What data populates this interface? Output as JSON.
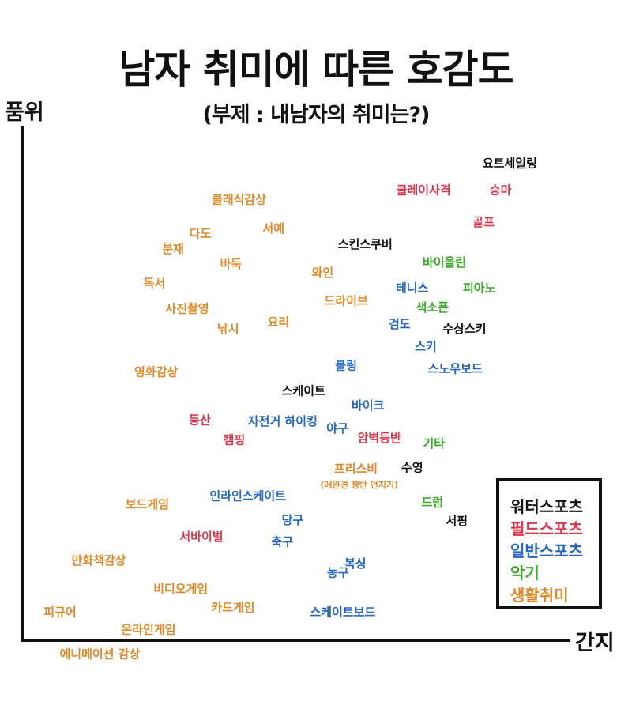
{
  "chart_data": {
    "type": "scatter",
    "title": "남자 취미에 따른 호감도",
    "subtitle": "(부제 : 내남자의 취미는?)",
    "xlabel": "간지",
    "ylabel": "품위",
    "xlim": [
      0,
      100
    ],
    "ylim": [
      0,
      100
    ],
    "grid": false,
    "legend_position": "bottom-right",
    "categories": [
      {
        "name": "워터스포츠",
        "color": "#111111"
      },
      {
        "name": "필드스포츠",
        "color": "#d9384a"
      },
      {
        "name": "일반스포츠",
        "color": "#2567c2"
      },
      {
        "name": "악기",
        "color": "#3aa82a"
      },
      {
        "name": "생활취미",
        "color": "#e0892a"
      }
    ],
    "points": [
      {
        "label": "요트세일링",
        "category": "워터스포츠",
        "x": 89.2,
        "y": 94.2
      },
      {
        "label": "클레이사격",
        "category": "필드스포츠",
        "x": 73.4,
        "y": 88.9
      },
      {
        "label": "승마",
        "category": "필드스포츠",
        "x": 87.5,
        "y": 88.9
      },
      {
        "label": "골프",
        "category": "필드스포츠",
        "x": 84.4,
        "y": 82.6
      },
      {
        "label": "클래식감상",
        "category": "생활취미",
        "x": 39.6,
        "y": 87.0
      },
      {
        "label": "서예",
        "category": "생활취미",
        "x": 45.9,
        "y": 81.3
      },
      {
        "label": "다도",
        "category": "생활취미",
        "x": 32.5,
        "y": 80.3
      },
      {
        "label": "스킨스쿠버",
        "category": "워터스포츠",
        "x": 62.7,
        "y": 78.2
      },
      {
        "label": "분재",
        "category": "생활취미",
        "x": 27.5,
        "y": 77.3
      },
      {
        "label": "바이올린",
        "category": "악기",
        "x": 77.2,
        "y": 74.6
      },
      {
        "label": "바둑",
        "category": "생활취미",
        "x": 38.1,
        "y": 74.3
      },
      {
        "label": "와인",
        "category": "생활취미",
        "x": 54.9,
        "y": 72.6
      },
      {
        "label": "독서",
        "category": "생활취미",
        "x": 24.1,
        "y": 70.5
      },
      {
        "label": "테니스",
        "category": "일반스포츠",
        "x": 71.3,
        "y": 69.5
      },
      {
        "label": "피아노",
        "category": "악기",
        "x": 83.6,
        "y": 69.5
      },
      {
        "label": "드라이브",
        "category": "생활취미",
        "x": 59.2,
        "y": 67.0
      },
      {
        "label": "색소폰",
        "category": "악기",
        "x": 75.0,
        "y": 65.7
      },
      {
        "label": "사진촬영",
        "category": "생활취미",
        "x": 30.1,
        "y": 65.5
      },
      {
        "label": "요리",
        "category": "생활취미",
        "x": 46.8,
        "y": 62.8
      },
      {
        "label": "검도",
        "category": "일반스포츠",
        "x": 69.0,
        "y": 62.4
      },
      {
        "label": "수상스키",
        "category": "워터스포츠",
        "x": 80.9,
        "y": 61.5
      },
      {
        "label": "낚시",
        "category": "생활취미",
        "x": 37.6,
        "y": 61.5
      },
      {
        "label": "스키",
        "category": "일반스포츠",
        "x": 73.8,
        "y": 58.0
      },
      {
        "label": "스노우보드",
        "category": "일반스포츠",
        "x": 79.2,
        "y": 53.6
      },
      {
        "label": "볼링",
        "category": "일반스포츠",
        "x": 59.2,
        "y": 54.2
      },
      {
        "label": "영화감상",
        "category": "생활취미",
        "x": 24.4,
        "y": 53.0
      },
      {
        "label": "스케이트",
        "category": "워터스포츠",
        "x": 51.4,
        "y": 49.2
      },
      {
        "label": "바이크",
        "category": "일반스포츠",
        "x": 63.2,
        "y": 46.3
      },
      {
        "label": "등산",
        "category": "필드스포츠",
        "x": 32.4,
        "y": 43.4
      },
      {
        "label": "자전거 하이킹",
        "category": "일반스포츠",
        "x": 47.6,
        "y": 43.2
      },
      {
        "label": "야구",
        "category": "일반스포츠",
        "x": 57.6,
        "y": 41.8
      },
      {
        "label": "암벽등반",
        "category": "필드스포츠",
        "x": 65.3,
        "y": 39.9
      },
      {
        "label": "기타",
        "category": "악기",
        "x": 75.3,
        "y": 38.8
      },
      {
        "label": "캠핑",
        "category": "필드스포츠",
        "x": 38.7,
        "y": 39.5
      },
      {
        "label": "수영",
        "category": "워터스포츠",
        "x": 71.3,
        "y": 34.1
      },
      {
        "label": "프리스비",
        "category": "생활취미",
        "x": 61.0,
        "y": 33.8
      },
      {
        "label": "(애완견 쟁반 던지기)",
        "category": "생활취미",
        "x": 61.6,
        "y": 30.6
      },
      {
        "label": "인라인스케이트",
        "category": "일반스포츠",
        "x": 41.2,
        "y": 28.4
      },
      {
        "label": "보드게임",
        "category": "생활취미",
        "x": 22.8,
        "y": 26.8
      },
      {
        "label": "드럼",
        "category": "악기",
        "x": 75.0,
        "y": 27.2
      },
      {
        "label": "당구",
        "category": "일반스포츠",
        "x": 49.4,
        "y": 23.7
      },
      {
        "label": "서핑",
        "category": "워터스포츠",
        "x": 79.5,
        "y": 23.5
      },
      {
        "label": "서바이벌",
        "category": "필드스포츠",
        "x": 32.7,
        "y": 20.4
      },
      {
        "label": "축구",
        "category": "일반스포츠",
        "x": 47.5,
        "y": 19.4
      },
      {
        "label": "만화책감상",
        "category": "생활취미",
        "x": 13.9,
        "y": 15.7
      },
      {
        "label": "복싱",
        "category": "일반스포츠",
        "x": 60.9,
        "y": 15.1
      },
      {
        "label": "농구",
        "category": "일반스포츠",
        "x": 57.7,
        "y": 13.3
      },
      {
        "label": "비디오게임",
        "category": "생활취미",
        "x": 28.9,
        "y": 10.1
      },
      {
        "label": "카드게임",
        "category": "생활취미",
        "x": 38.5,
        "y": 6.4
      },
      {
        "label": "스케이트보드",
        "category": "일반스포츠",
        "x": 58.6,
        "y": 5.5
      },
      {
        "label": "피규어",
        "category": "생활취미",
        "x": 6.8,
        "y": 5.5
      },
      {
        "label": "온라인게임",
        "category": "생활취미",
        "x": 23.0,
        "y": 2.0
      },
      {
        "label": "에니메이션 감상",
        "category": "생활취미",
        "x": 14.1,
        "y": -2.8
      }
    ]
  }
}
